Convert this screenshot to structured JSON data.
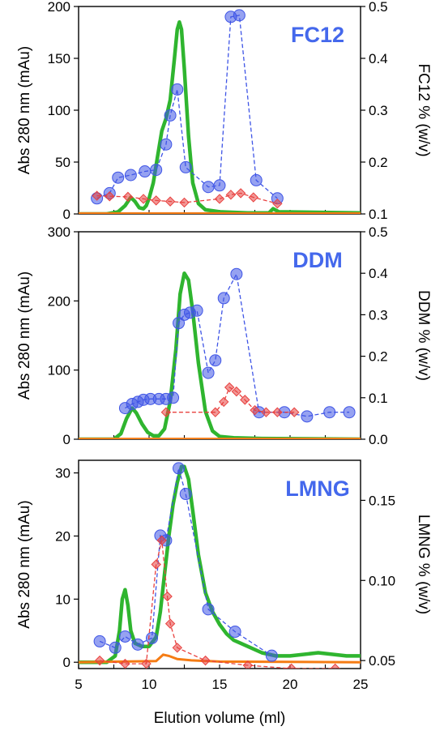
{
  "colors": {
    "abs_trace": "#2fb52f",
    "detergent": "#3f55e6",
    "red": "#e8413f",
    "orange": "#f57c14",
    "panel_label": "#4468ec"
  },
  "xlabel": "Elution volume (ml)",
  "xlim": [
    5,
    25
  ],
  "xticks": [
    "5",
    "10",
    "15",
    "20",
    "25"
  ],
  "chart_data": [
    {
      "type": "line",
      "panel_label": "FC12",
      "ylabel_left": "Abs 280 nm (mAu)",
      "ylabel_right": "FC12 % (w/v)",
      "ylim_left": [
        0,
        200
      ],
      "ylim_right": [
        0.1,
        0.5
      ],
      "yticks_left": [
        "0",
        "50",
        "100",
        "150",
        "200"
      ],
      "yticks_right": [
        "0.1",
        "0.2",
        "0.3",
        "0.4",
        "0.5"
      ],
      "series": [
        {
          "kind": "abs_trace",
          "axis": "left",
          "x": [
            5,
            7,
            7.8,
            8.3,
            8.7,
            9.0,
            9.3,
            9.6,
            9.8,
            10.0,
            10.3,
            10.6,
            10.9,
            11.2,
            11.5,
            11.8,
            12.0,
            12.15,
            12.3,
            12.5,
            12.8,
            13.1,
            13.5,
            14.0,
            15,
            17,
            18.5,
            18.8,
            19.2,
            25
          ],
          "y": [
            0,
            0,
            2,
            8,
            16,
            12,
            6,
            5,
            8,
            15,
            30,
            55,
            80,
            92,
            110,
            150,
            178,
            185,
            178,
            140,
            75,
            30,
            10,
            4,
            2,
            1,
            1,
            5,
            2,
            1
          ]
        },
        {
          "kind": "orange_trace",
          "axis": "left",
          "x": [
            5,
            25
          ],
          "y": [
            0.5,
            0.5
          ]
        },
        {
          "kind": "blue_markers",
          "axis": "right",
          "x": [
            6.3,
            7.2,
            7.8,
            8.7,
            9.7,
            10.5,
            11.2,
            11.5,
            12.0,
            12.6,
            14.2,
            15.0,
            15.8,
            16.4,
            17.6,
            19.1
          ],
          "y": [
            0.13,
            0.14,
            0.17,
            0.175,
            0.182,
            0.185,
            0.234,
            0.29,
            0.34,
            0.19,
            0.152,
            0.155,
            0.48,
            0.483,
            0.165,
            0.13
          ]
        },
        {
          "kind": "red_markers",
          "axis": "right",
          "x": [
            6.3,
            7.2,
            8.5,
            9.6,
            10.5,
            11.5,
            12.5,
            15.0,
            15.8,
            16.5,
            17.4,
            19.1
          ],
          "y": [
            0.135,
            0.134,
            0.133,
            0.129,
            0.126,
            0.124,
            0.122,
            0.129,
            0.137,
            0.14,
            0.132,
            0.12
          ]
        }
      ]
    },
    {
      "type": "line",
      "panel_label": "DDM",
      "ylabel_left": "Abs 280 nm (mAu)",
      "ylabel_right": "DDM % (w/v)",
      "ylim_left": [
        0,
        300
      ],
      "ylim_right": [
        0,
        0.5
      ],
      "yticks_left": [
        "0",
        "100",
        "200",
        "300"
      ],
      "yticks_right": [
        "0.0",
        "0.1",
        "0.2",
        "0.3",
        "0.4",
        "0.5"
      ],
      "series": [
        {
          "kind": "abs_trace",
          "axis": "left",
          "x": [
            5,
            7.5,
            8.0,
            8.4,
            8.8,
            9.1,
            9.5,
            9.9,
            10.3,
            10.7,
            11.1,
            11.5,
            11.9,
            12.2,
            12.5,
            12.8,
            13.1,
            13.5,
            14.0,
            14.5,
            15.0,
            16,
            18,
            25
          ],
          "y": [
            0,
            0,
            8,
            30,
            45,
            38,
            22,
            10,
            5,
            5,
            15,
            55,
            130,
            210,
            240,
            230,
            185,
            110,
            40,
            12,
            4,
            2,
            1,
            0
          ]
        },
        {
          "kind": "orange_trace",
          "axis": "left",
          "x": [
            5,
            25
          ],
          "y": [
            0.5,
            0.5
          ]
        },
        {
          "kind": "blue_markers",
          "axis": "right",
          "x": [
            8.3,
            8.8,
            9.2,
            9.6,
            10.1,
            10.7,
            11.2,
            11.7,
            12.1,
            12.5,
            12.9,
            13.4,
            14.2,
            14.7,
            15.3,
            16.2,
            17.8,
            19.6,
            21.2,
            22.8,
            24.2
          ],
          "y": [
            0.075,
            0.085,
            0.09,
            0.095,
            0.097,
            0.097,
            0.097,
            0.1,
            0.28,
            0.3,
            0.305,
            0.31,
            0.16,
            0.19,
            0.34,
            0.398,
            0.065,
            0.065,
            0.055,
            0.065,
            0.065
          ]
        },
        {
          "kind": "red_markers",
          "axis": "right",
          "x": [
            11.2,
            14.7,
            15.3,
            15.7,
            16.2,
            16.8,
            17.5,
            18.3,
            19.1,
            20.3
          ],
          "y": [
            0.065,
            0.065,
            0.09,
            0.125,
            0.115,
            0.095,
            0.07,
            0.065,
            0.065,
            0.065
          ]
        }
      ]
    },
    {
      "type": "line",
      "panel_label": "LMNG",
      "ylabel_left": "Abs 280 nm (mAu)",
      "ylabel_right": "LMNG % (w/v)",
      "ylim_left": [
        -1,
        32
      ],
      "ylim_right": [
        0.045,
        0.175
      ],
      "yticks_left": [
        "0",
        "10",
        "20",
        "30"
      ],
      "yticks_right": [
        "0.05",
        "0.10",
        "0.15"
      ],
      "series": [
        {
          "kind": "abs_trace",
          "axis": "left",
          "x": [
            5,
            7.0,
            7.6,
            7.9,
            8.1,
            8.3,
            8.5,
            8.7,
            9.0,
            9.5,
            10.0,
            10.5,
            10.8,
            11.1,
            11.4,
            11.7,
            12.0,
            12.3,
            12.5,
            12.8,
            13.1,
            13.5,
            14.0,
            14.5,
            15.0,
            15.5,
            16,
            16.5,
            17,
            18,
            19,
            20,
            22,
            24,
            25
          ],
          "y": [
            0,
            0,
            1,
            5,
            10,
            11.5,
            9,
            5,
            3,
            2.5,
            2.5,
            4,
            8,
            14,
            20,
            25,
            28.5,
            31,
            31,
            29,
            24,
            17,
            11,
            8,
            6,
            4.5,
            3.5,
            3,
            2.5,
            1.5,
            1,
            1,
            1.5,
            1,
            1
          ]
        },
        {
          "kind": "orange_trace",
          "axis": "left",
          "x": [
            5,
            10.5,
            11.0,
            11.4,
            12.0,
            13,
            15,
            25
          ],
          "y": [
            0,
            0.2,
            1.2,
            1.0,
            0.5,
            0.3,
            0.1,
            0
          ]
        },
        {
          "kind": "blue_markers",
          "axis": "right",
          "x": [
            6.5,
            7.6,
            8.3,
            9.2,
            10.2,
            10.8,
            11.2,
            12.1,
            12.6,
            14.2,
            16.1,
            18.7
          ],
          "y": [
            0.062,
            0.058,
            0.065,
            0.06,
            0.064,
            0.128,
            0.125,
            0.17,
            0.154,
            0.082,
            0.068,
            0.053
          ]
        },
        {
          "kind": "red_markers",
          "axis": "right",
          "x": [
            6.5,
            8.3,
            9.8,
            10.5,
            10.9,
            11.3,
            11.5,
            12.0,
            14.0,
            17.0,
            20.1,
            23.2
          ],
          "y": [
            0.05,
            0.048,
            0.048,
            0.11,
            0.125,
            0.09,
            0.073,
            0.058,
            0.05,
            0.047,
            0.045,
            0.045
          ]
        }
      ]
    }
  ]
}
